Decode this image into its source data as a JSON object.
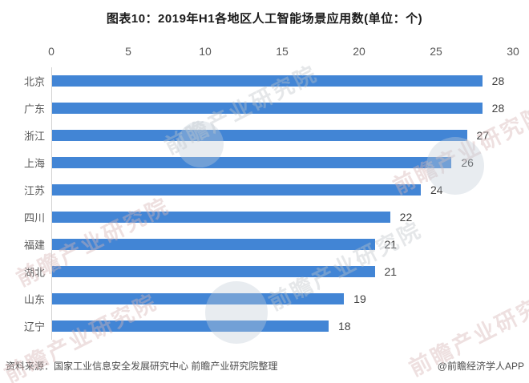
{
  "chart_data": {
    "type": "bar",
    "orientation": "horizontal",
    "title": "图表10：2019年H1各地区人工智能场景应用数(单位：个)",
    "categories": [
      "北京",
      "广东",
      "浙江",
      "上海",
      "江苏",
      "四川",
      "福建",
      "湖北",
      "山东",
      "辽宁"
    ],
    "values": [
      28,
      28,
      27,
      26,
      24,
      22,
      21,
      21,
      19,
      18
    ],
    "xlabel": "",
    "ylabel": "",
    "xlim": [
      0,
      30
    ],
    "x_ticks": [
      0,
      5,
      10,
      15,
      20,
      25,
      30
    ],
    "grid": false,
    "legend": false,
    "axis_position": "top",
    "bar_color": "#4285d5"
  },
  "footer": {
    "source": "资料来源：国家工业信息安全发展研究中心 前瞻产业研究院整理",
    "credit": "@前瞻经济学人APP"
  },
  "watermark": {
    "text": "前瞻产业研究院"
  },
  "colors": {
    "bar": "#4285d5",
    "title": "#1a1a1a",
    "category_label": "#595959",
    "value_label": "#404040",
    "axis_line": "#d2d2d2",
    "footer_text": "#4d4d4d"
  }
}
